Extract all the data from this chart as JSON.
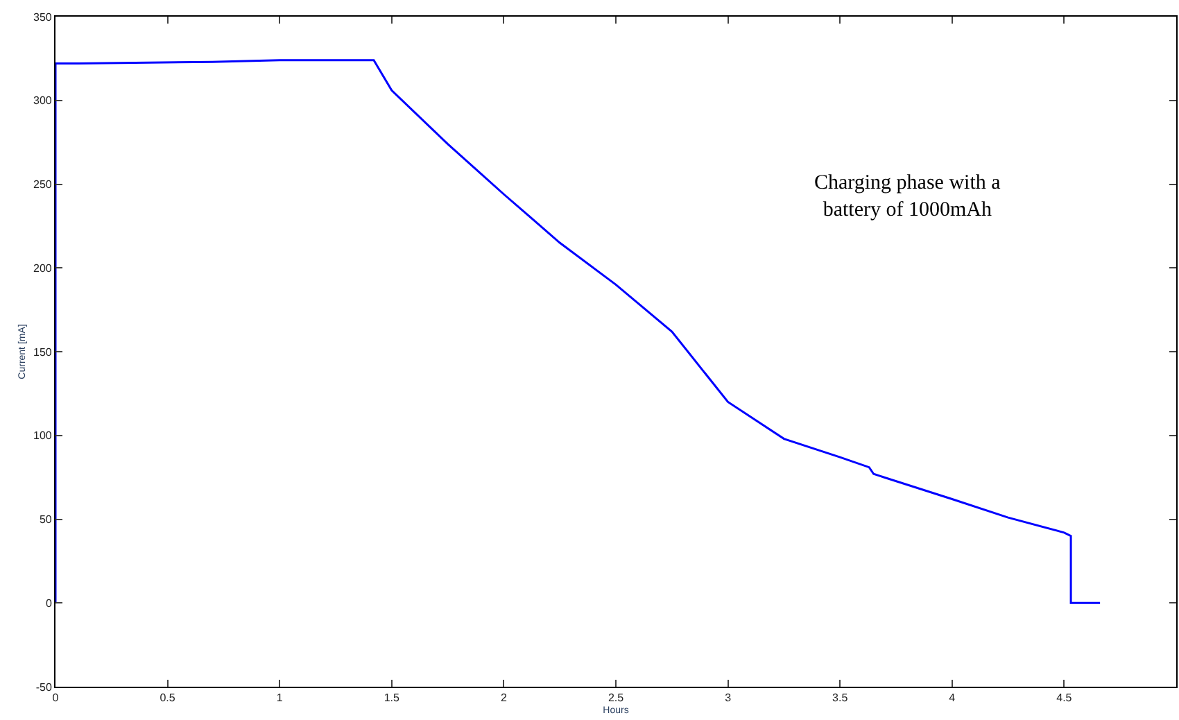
{
  "chart_data": {
    "type": "line",
    "xlabel": "Hours",
    "ylabel": "Current [mA]",
    "annotations": [
      "Charging phase with a\nbattery of 1000mAh"
    ],
    "x": [
      0,
      0,
      0.1,
      0.7,
      1.0,
      1.42,
      1.5,
      1.75,
      2.0,
      2.25,
      2.5,
      2.75,
      3.0,
      3.25,
      3.5,
      3.63,
      3.65,
      4.0,
      4.25,
      4.5,
      4.53,
      4.53,
      4.66
    ],
    "series": [
      {
        "color": "#0000ff",
        "values": [
          0,
          322,
          322,
          323,
          324,
          324,
          306,
          274,
          244,
          215,
          190,
          162,
          120,
          98,
          87,
          81,
          77,
          62,
          51,
          42,
          40,
          0,
          0
        ]
      }
    ],
    "xlim": [
      0,
      5
    ],
    "xticks": [
      0,
      0.5,
      1,
      1.5,
      2,
      2.5,
      3,
      3.5,
      4,
      4.5
    ],
    "ylim": [
      -50,
      350
    ],
    "yticks": [
      -50,
      0,
      50,
      100,
      150,
      200,
      250,
      300,
      350
    ],
    "legend": false,
    "marker": "none",
    "line_style": "solid"
  }
}
